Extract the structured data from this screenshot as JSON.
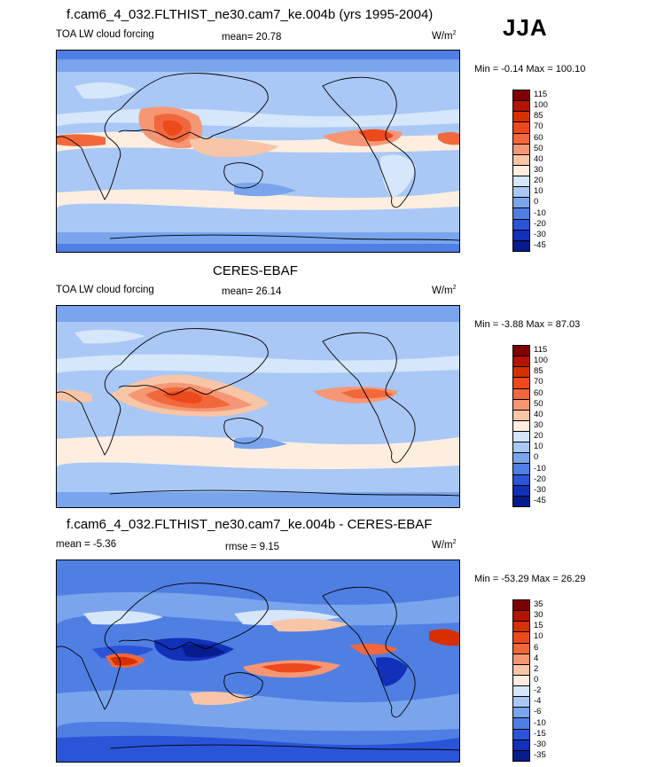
{
  "season": "JJA",
  "panels": [
    {
      "id": "model",
      "title": "f.cam6_4_032.FLTHIST_ne30.cam7_ke.004b (yrs 1995-2004)",
      "left_label": "TOA LW cloud forcing",
      "center_label": "mean=  20.78",
      "units": "W/m",
      "units_sup": "2",
      "minmax": "Min =  -0.14 Max = 100.10",
      "levels": [
        "115",
        "100",
        "85",
        "70",
        "60",
        "50",
        "40",
        "30",
        "20",
        "10",
        "0",
        "-10",
        "-20",
        "-30",
        "-45"
      ],
      "colors": [
        "#7f0000",
        "#b31400",
        "#d63000",
        "#ec4a1c",
        "#f0683c",
        "#f59775",
        "#f8c5a6",
        "#fdeee0",
        "#d6e6fb",
        "#a9c8f5",
        "#7aa5ec",
        "#4f7fe3",
        "#2a55d8",
        "#1230b8",
        "#061c8c"
      ]
    },
    {
      "id": "obs",
      "title": "CERES-EBAF",
      "left_label": "TOA LW cloud forcing",
      "center_label": "mean=  26.14",
      "units": "W/m",
      "units_sup": "2",
      "minmax": "Min =  -3.88 Max = 87.03",
      "levels": [
        "115",
        "100",
        "85",
        "70",
        "60",
        "50",
        "40",
        "30",
        "20",
        "10",
        "0",
        "-10",
        "-20",
        "-30",
        "-45"
      ],
      "colors": [
        "#7f0000",
        "#b31400",
        "#d63000",
        "#ec4a1c",
        "#f0683c",
        "#f59775",
        "#f8c5a6",
        "#fdeee0",
        "#d6e6fb",
        "#a9c8f5",
        "#7aa5ec",
        "#4f7fe3",
        "#2a55d8",
        "#1230b8",
        "#061c8c"
      ]
    },
    {
      "id": "diff",
      "title": "f.cam6_4_032.FLTHIST_ne30.cam7_ke.004b - CERES-EBAF",
      "left_label": "mean =  -5.36",
      "center_label": "rmse =   9.15",
      "units": "W/m",
      "units_sup": "2",
      "minmax": "Min = -53.29 Max =  26.29",
      "levels": [
        "35",
        "30",
        "15",
        "10",
        "6",
        "4",
        "2",
        "0",
        "-2",
        "-4",
        "-6",
        "-10",
        "-15",
        "-30",
        "-35"
      ],
      "colors": [
        "#7f0000",
        "#b31400",
        "#d63000",
        "#ec4a1c",
        "#f0683c",
        "#f59775",
        "#f8c5a6",
        "#fdeee0",
        "#d6e6fb",
        "#a9c8f5",
        "#7aa5ec",
        "#4f7fe3",
        "#2a55d8",
        "#1230b8",
        "#061c8c"
      ]
    }
  ]
}
